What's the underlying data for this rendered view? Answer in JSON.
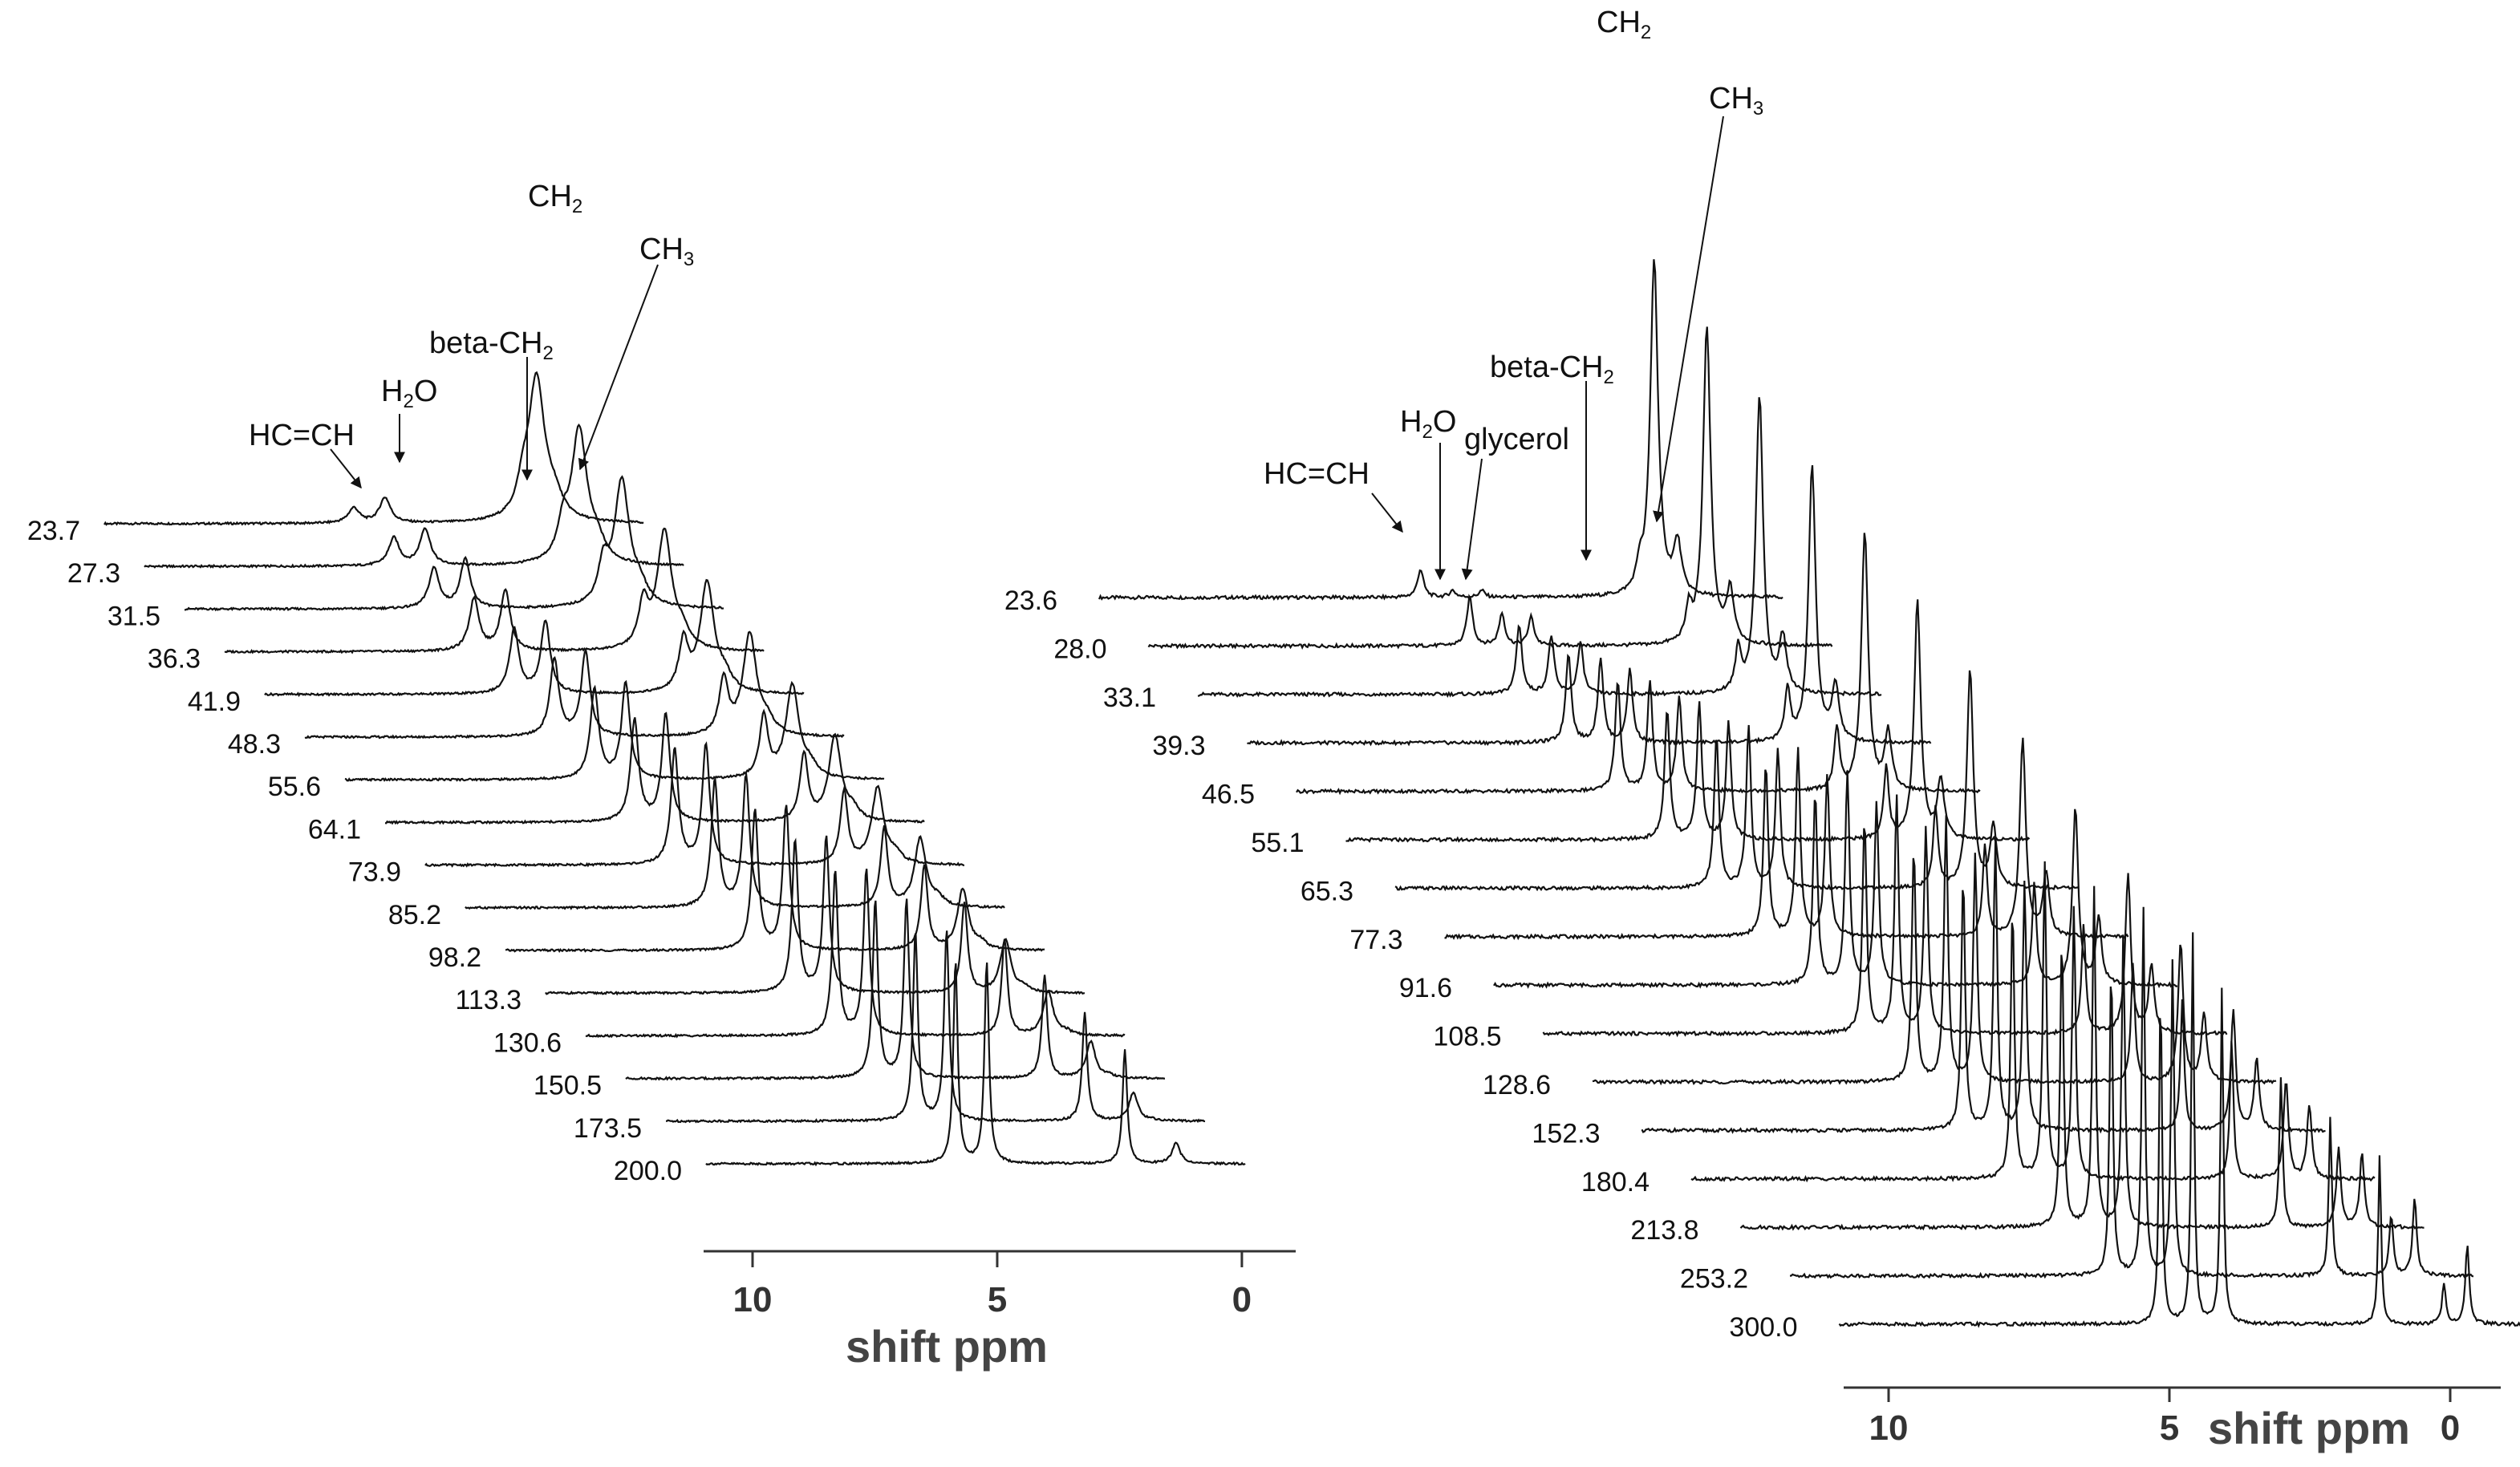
{
  "chart_data": [
    {
      "type": "line",
      "plot": "stacked-spectra",
      "xlabel": "shift ppm",
      "xticks": [
        "10",
        "5",
        "0"
      ],
      "x_reversed": true,
      "xlim": [
        11.0,
        -1.1
      ],
      "series_labels": [
        "23.7",
        "27.3",
        "31.5",
        "36.3",
        "41.9",
        "48.3",
        "55.6",
        "64.1",
        "73.9",
        "85.2",
        "98.2",
        "113.3",
        "130.6",
        "150.5",
        "173.5",
        "200.0"
      ],
      "peaks": {
        "HC=CH": [
          5.4,
          0.045,
          0.6
        ],
        "H2O": [
          4.7,
          0.075,
          0.6
        ],
        "beta-CH2": [
          1.6,
          0.075,
          0.34
        ],
        "CH2": [
          1.3,
          0.42,
          0.06
        ],
        "CH3": [
          0.9,
          0.055,
          0.0
        ]
      },
      "peak_widths": [
        0.22,
        0.06
      ],
      "annotations": [
        {
          "main": "HC=CH",
          "sub": "",
          "tail": ""
        },
        {
          "main": "H",
          "sub": "2",
          "tail": "O"
        },
        {
          "main": "beta-CH",
          "sub": "2",
          "tail": ""
        },
        {
          "main": "CH",
          "sub": "2",
          "tail": ""
        },
        {
          "main": "CH",
          "sub": "3",
          "tail": ""
        }
      ]
    },
    {
      "type": "line",
      "plot": "stacked-spectra",
      "xlabel": "shift ppm",
      "xticks": [
        "10",
        "5",
        "0"
      ],
      "x_reversed": true,
      "xlim": [
        10.8,
        -0.9
      ],
      "series_labels": [
        "23.6",
        "28.0",
        "33.1",
        "39.3",
        "46.5",
        "55.1",
        "65.3",
        "77.3",
        "91.6",
        "108.5",
        "128.6",
        "152.3",
        "180.4",
        "213.8",
        "253.2",
        "300.0"
      ],
      "peaks": {
        "HC=CH": [
          5.3,
          0.05,
          0.6
        ],
        "H2O": [
          4.75,
          0.012,
          0.7
        ],
        "glycerol": [
          4.25,
          0.012,
          0.6
        ],
        "beta-CH2": [
          1.55,
          0.04,
          0.3
        ],
        "CH2": [
          1.3,
          0.6,
          0.07
        ],
        "CH3": [
          0.9,
          0.09,
          0.14
        ]
      },
      "peak_widths": [
        0.08,
        0.03
      ],
      "annotations": [
        {
          "main": "HC=CH",
          "sub": "",
          "tail": ""
        },
        {
          "main": "H",
          "sub": "2",
          "tail": "O"
        },
        {
          "main": "glycerol",
          "sub": "",
          "tail": ""
        },
        {
          "main": "beta-CH",
          "sub": "2",
          "tail": ""
        },
        {
          "main": "CH",
          "sub": "2",
          "tail": ""
        },
        {
          "main": "CH",
          "sub": "3",
          "tail": ""
        }
      ]
    }
  ]
}
